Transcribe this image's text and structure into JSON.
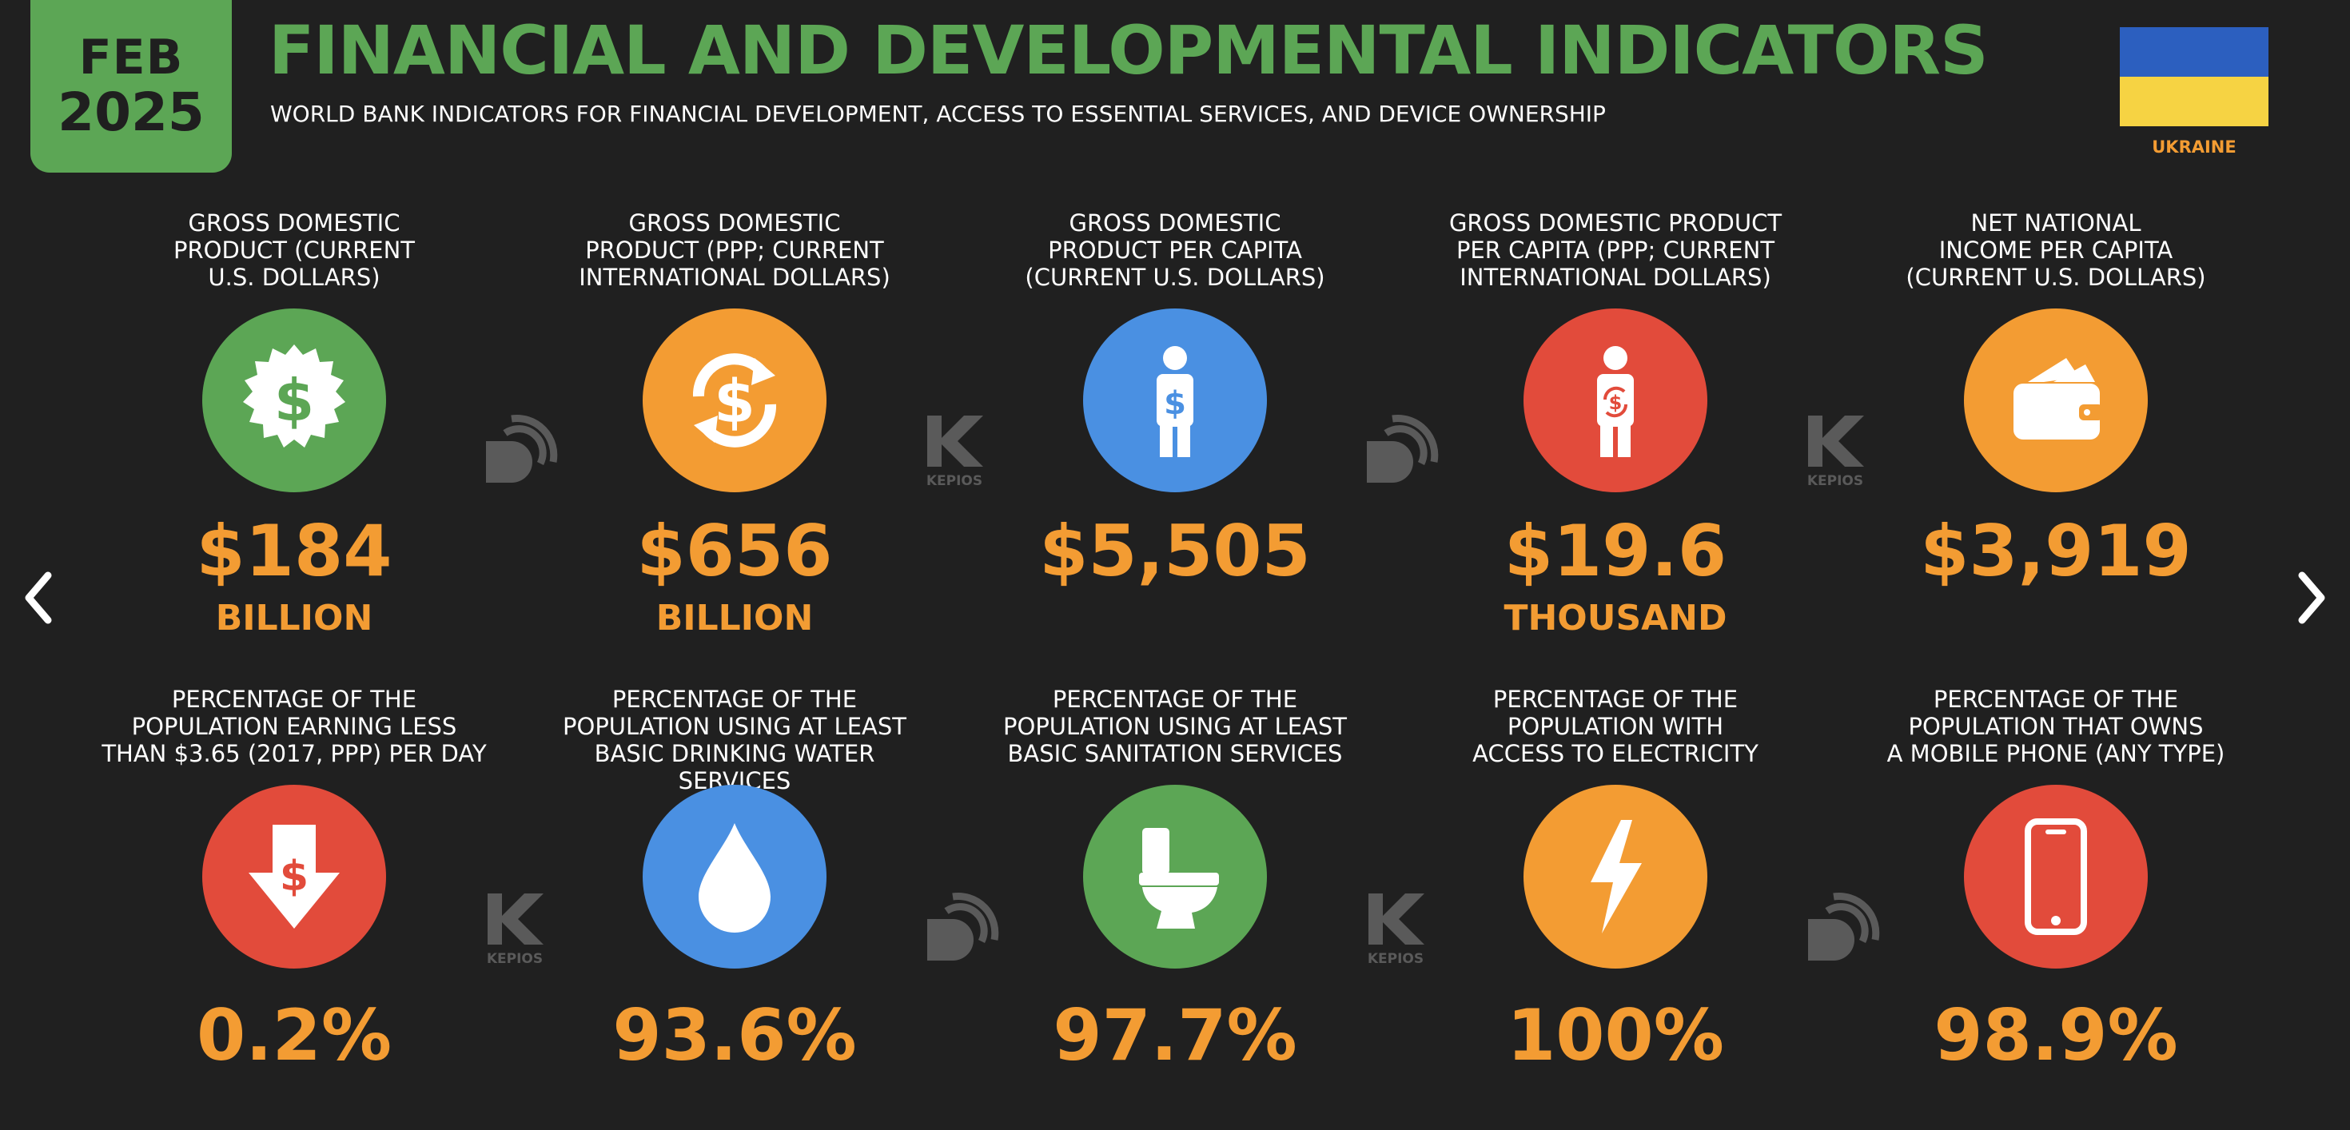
{
  "header": {
    "date_month": "FEB",
    "date_year": "2025",
    "title": "FINANCIAL AND DEVELOPMENTAL INDICATORS",
    "subtitle": "WORLD BANK INDICATORS FOR FINANCIAL DEVELOPMENT, ACCESS TO ESSENTIAL SERVICES, AND DEVICE OWNERSHIP",
    "country": "UKRAINE"
  },
  "colors": {
    "green": "#5ca655",
    "orange": "#f39c33",
    "blue": "#4a90e2",
    "red": "#e24b3b",
    "flag_blue": "#2c5fbf",
    "flag_yellow": "#f6d343",
    "background": "#202020"
  },
  "watermark": {
    "kepios_label": "KEPIOS"
  },
  "indicators_row1": [
    {
      "label": "GROSS DOMESTIC\nPRODUCT (CURRENT\nU.S. DOLLARS)",
      "value": "$184",
      "unit": "BILLION",
      "icon": "dollar-badge-icon",
      "color": "#5ca655"
    },
    {
      "label": "GROSS DOMESTIC\nPRODUCT (PPP; CURRENT\nINTERNATIONAL DOLLARS)",
      "value": "$656",
      "unit": "BILLION",
      "icon": "dollar-exchange-icon",
      "color": "#f39c33"
    },
    {
      "label": "GROSS DOMESTIC\nPRODUCT PER CAPITA\n(CURRENT U.S. DOLLARS)",
      "value": "$5,505",
      "unit": "",
      "icon": "person-dollar-icon",
      "color": "#4a90e2"
    },
    {
      "label": "GROSS DOMESTIC PRODUCT\nPER CAPITA (PPP; CURRENT\nINTERNATIONAL DOLLARS)",
      "value": "$19.6",
      "unit": "THOUSAND",
      "icon": "person-exchange-icon",
      "color": "#e24b3b"
    },
    {
      "label": "NET NATIONAL\nINCOME PER CAPITA\n(CURRENT U.S. DOLLARS)",
      "value": "$3,919",
      "unit": "",
      "icon": "wallet-icon",
      "color": "#f39c33"
    }
  ],
  "indicators_row2": [
    {
      "label": "PERCENTAGE OF THE\nPOPULATION EARNING LESS\nTHAN $3.65 (2017, PPP) PER DAY",
      "value": "0.2%",
      "icon": "dollar-down-arrow-icon",
      "color": "#e24b3b"
    },
    {
      "label": "PERCENTAGE OF THE\nPOPULATION USING AT LEAST\nBASIC DRINKING WATER SERVICES",
      "value": "93.6%",
      "icon": "water-drop-icon",
      "color": "#4a90e2"
    },
    {
      "label": "PERCENTAGE OF THE\nPOPULATION USING AT LEAST\nBASIC SANITATION SERVICES",
      "value": "97.7%",
      "icon": "toilet-icon",
      "color": "#5ca655"
    },
    {
      "label": "PERCENTAGE OF THE\nPOPULATION WITH\nACCESS TO ELECTRICITY",
      "value": "100%",
      "icon": "lightning-bolt-icon",
      "color": "#f39c33"
    },
    {
      "label": "PERCENTAGE OF THE\nPOPULATION THAT OWNS\nA MOBILE PHONE (ANY TYPE)",
      "value": "98.9%",
      "icon": "mobile-phone-icon",
      "color": "#e24b3b"
    }
  ]
}
